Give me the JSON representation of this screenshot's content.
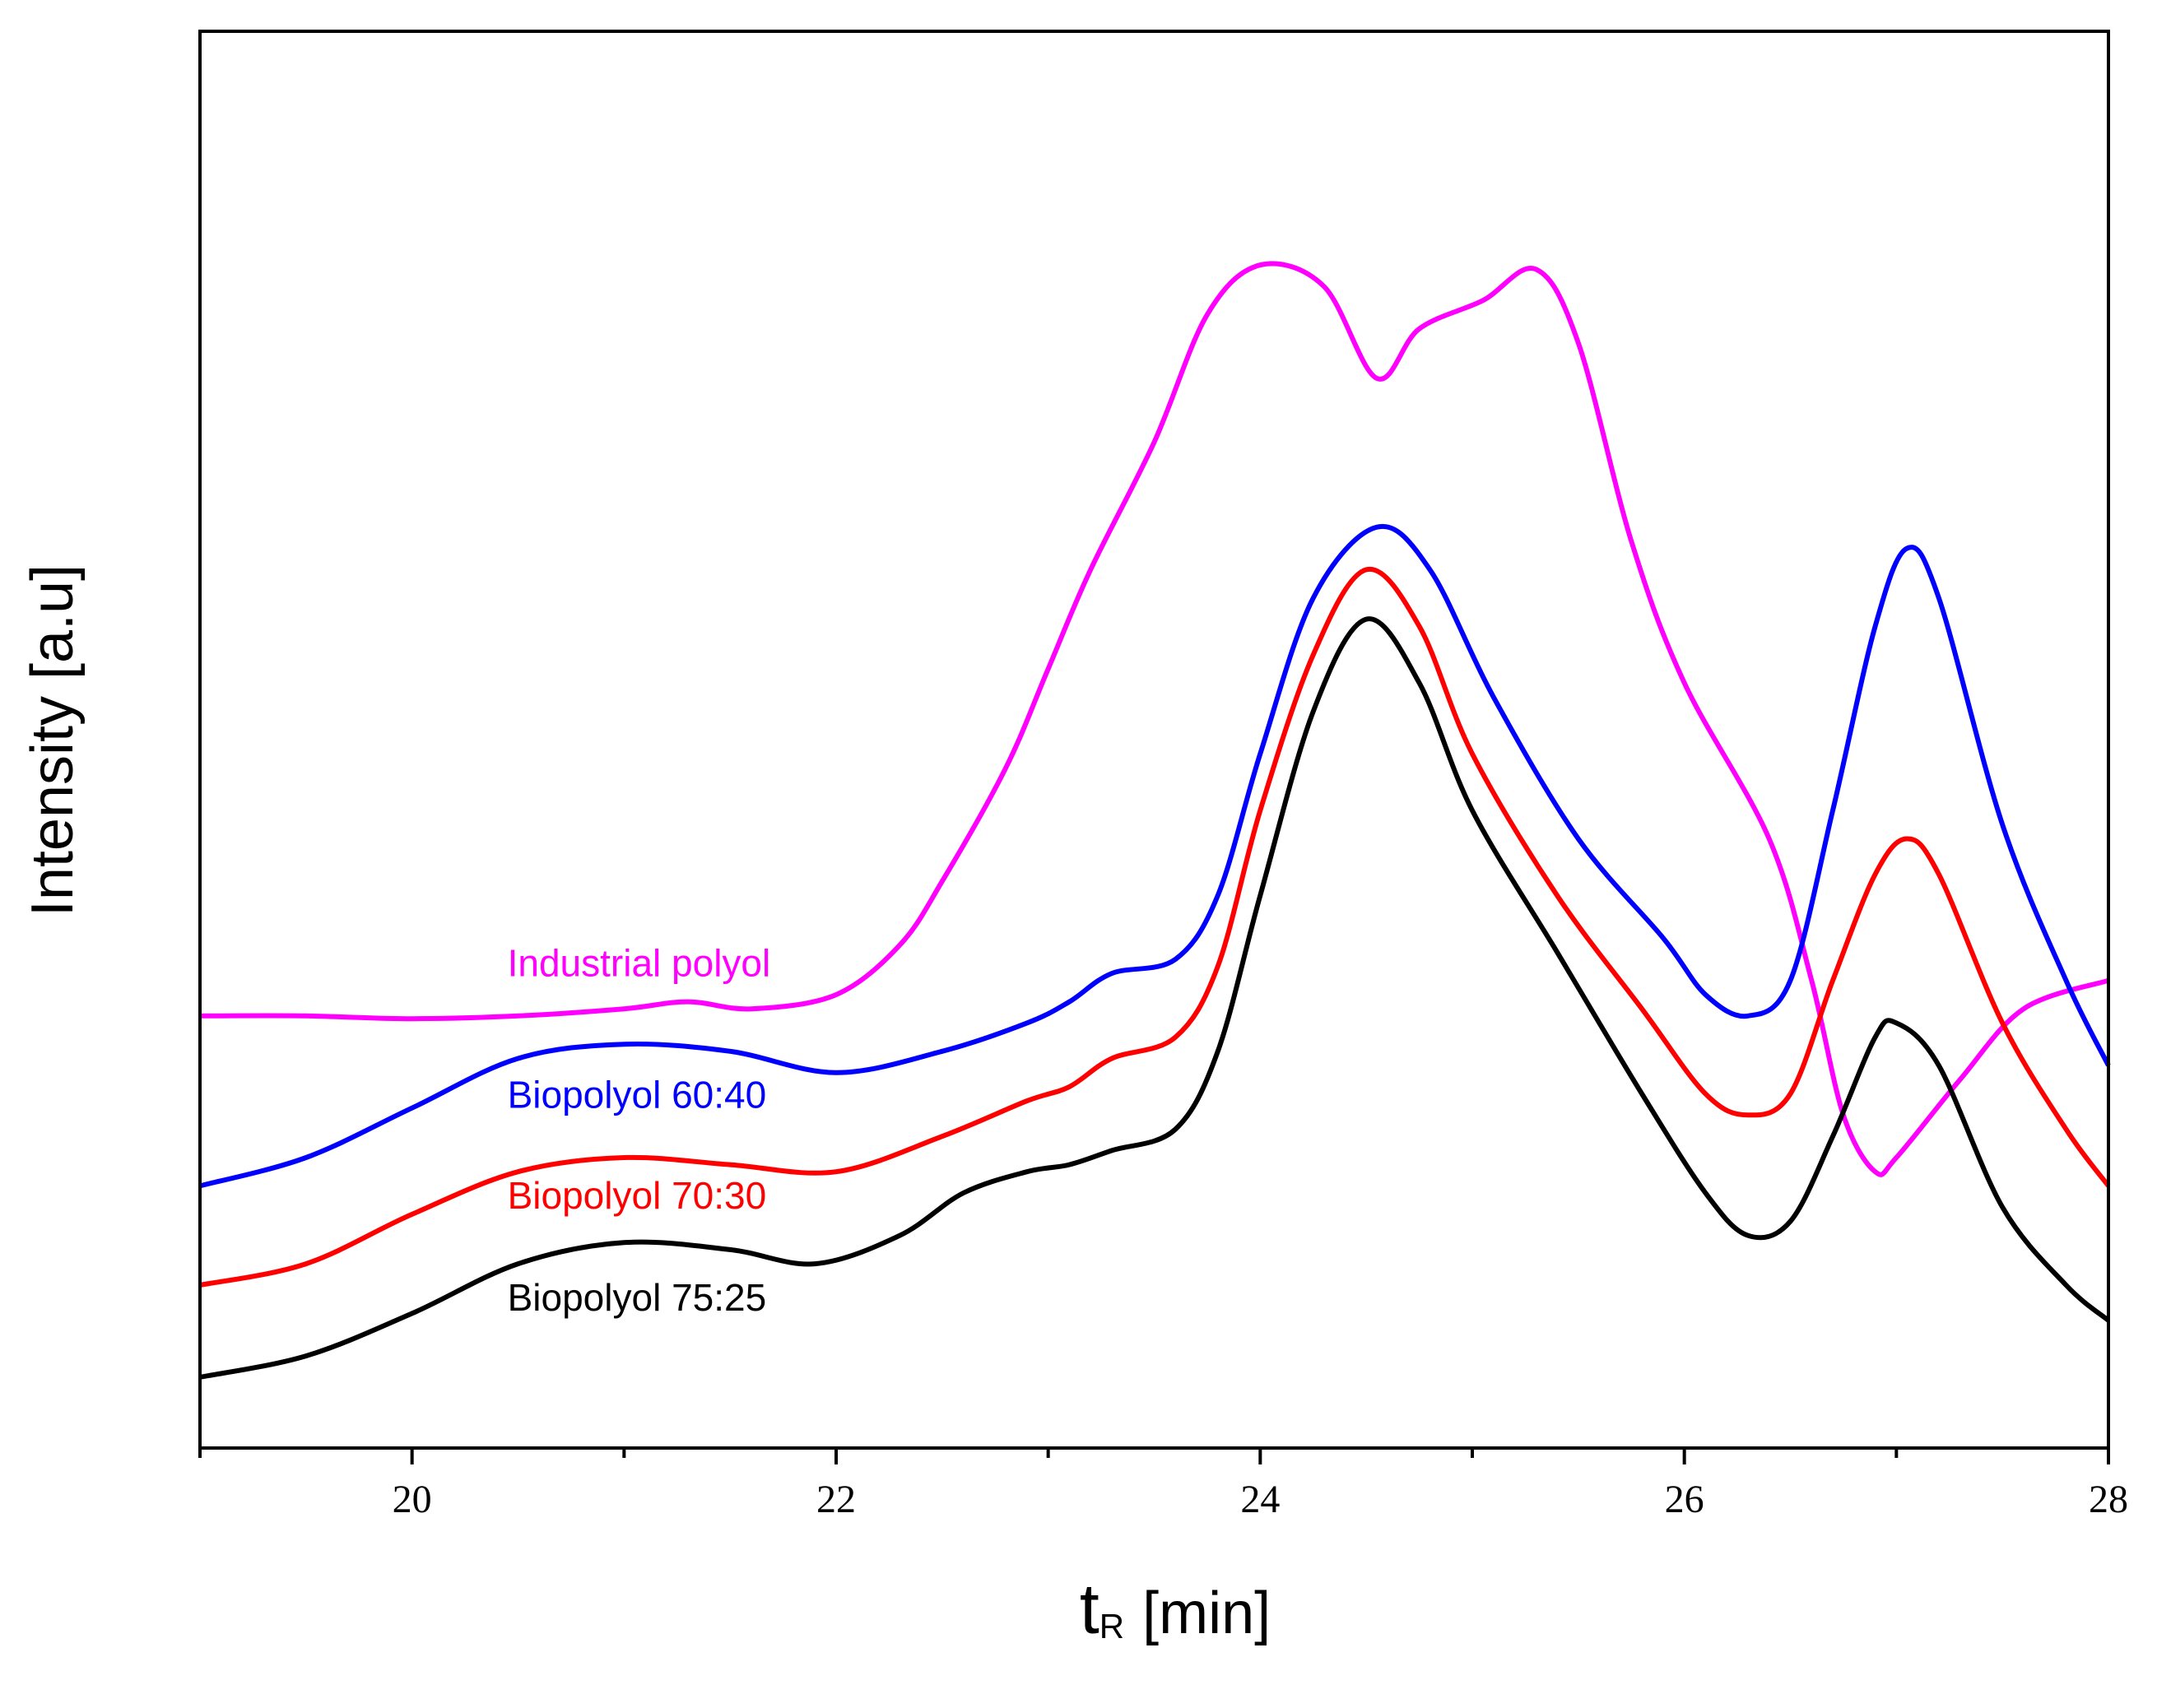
{
  "chart_data": {
    "type": "line",
    "title": "",
    "xlabel": {
      "main": "t",
      "subscript": "R",
      "unit": "[min]"
    },
    "ylabel": "Intensity [a.u]",
    "xlim": [
      19,
      28
    ],
    "ylim": [
      0,
      100
    ],
    "x_ticks": [
      20,
      22,
      24,
      26,
      28
    ],
    "y_ticks_shown": false,
    "grid": false,
    "series": [
      {
        "name": "Industrial polyol",
        "color": "#ff00ff",
        "points": [
          [
            19,
            30.5
          ],
          [
            19.5,
            30.5
          ],
          [
            20,
            30.3
          ],
          [
            20.5,
            30.5
          ],
          [
            21,
            31
          ],
          [
            21.3,
            31.5
          ],
          [
            21.6,
            31
          ],
          [
            22,
            32
          ],
          [
            22.3,
            35.5
          ],
          [
            22.5,
            40
          ],
          [
            22.8,
            48
          ],
          [
            23,
            55
          ],
          [
            23.2,
            62
          ],
          [
            23.5,
            71
          ],
          [
            23.75,
            80
          ],
          [
            24,
            83.5
          ],
          [
            24.3,
            82
          ],
          [
            24.55,
            75.5
          ],
          [
            24.75,
            79
          ],
          [
            25.05,
            81
          ],
          [
            25.3,
            83.2
          ],
          [
            25.5,
            78
          ],
          [
            25.75,
            64
          ],
          [
            26,
            54
          ],
          [
            26.4,
            43
          ],
          [
            26.6,
            33
          ],
          [
            26.75,
            23.5
          ],
          [
            26.9,
            19.5
          ],
          [
            27.0,
            20.5
          ],
          [
            27.3,
            26
          ],
          [
            27.6,
            31
          ],
          [
            28,
            33
          ]
        ]
      },
      {
        "name": "Biopolyol 60:40",
        "color": "#0000ff",
        "points": [
          [
            19,
            18.5
          ],
          [
            19.5,
            20.5
          ],
          [
            20,
            24
          ],
          [
            20.5,
            27.5
          ],
          [
            21,
            28.5
          ],
          [
            21.5,
            28
          ],
          [
            22,
            26.5
          ],
          [
            22.5,
            28
          ],
          [
            22.9,
            30
          ],
          [
            23.1,
            31.5
          ],
          [
            23.3,
            33.5
          ],
          [
            23.6,
            34.5
          ],
          [
            23.8,
            39
          ],
          [
            24,
            49
          ],
          [
            24.25,
            60
          ],
          [
            24.55,
            65
          ],
          [
            24.8,
            62
          ],
          [
            25.1,
            53
          ],
          [
            25.5,
            43
          ],
          [
            25.9,
            36
          ],
          [
            26.1,
            32
          ],
          [
            26.3,
            30.5
          ],
          [
            26.5,
            33
          ],
          [
            26.7,
            45
          ],
          [
            26.9,
            58
          ],
          [
            27.05,
            63.5
          ],
          [
            27.2,
            60
          ],
          [
            27.5,
            44
          ],
          [
            27.8,
            33
          ],
          [
            28,
            27
          ]
        ]
      },
      {
        "name": "Biopolyol 70:30",
        "color": "#ff0000",
        "points": [
          [
            19,
            11.5
          ],
          [
            19.5,
            13
          ],
          [
            20,
            16.5
          ],
          [
            20.5,
            19.5
          ],
          [
            21,
            20.5
          ],
          [
            21.5,
            20
          ],
          [
            22,
            19.5
          ],
          [
            22.5,
            22
          ],
          [
            22.9,
            24.5
          ],
          [
            23.1,
            25.5
          ],
          [
            23.3,
            27.5
          ],
          [
            23.6,
            29
          ],
          [
            23.8,
            34
          ],
          [
            24,
            45
          ],
          [
            24.25,
            56
          ],
          [
            24.5,
            62
          ],
          [
            24.75,
            58
          ],
          [
            25,
            49
          ],
          [
            25.4,
            39
          ],
          [
            25.8,
            31
          ],
          [
            26.1,
            25
          ],
          [
            26.3,
            23.5
          ],
          [
            26.5,
            25
          ],
          [
            26.7,
            33
          ],
          [
            26.9,
            40.5
          ],
          [
            27.05,
            43
          ],
          [
            27.2,
            40.5
          ],
          [
            27.5,
            30
          ],
          [
            27.8,
            22.5
          ],
          [
            28,
            18.5
          ]
        ]
      },
      {
        "name": "Biopolyol 75:25",
        "color": "#000000",
        "points": [
          [
            19,
            5
          ],
          [
            19.5,
            6.5
          ],
          [
            20,
            9.5
          ],
          [
            20.5,
            13
          ],
          [
            21,
            14.5
          ],
          [
            21.5,
            14
          ],
          [
            21.9,
            13
          ],
          [
            22.3,
            15
          ],
          [
            22.6,
            18
          ],
          [
            22.9,
            19.5
          ],
          [
            23.1,
            20
          ],
          [
            23.3,
            21
          ],
          [
            23.6,
            22.5
          ],
          [
            23.8,
            28
          ],
          [
            24,
            39
          ],
          [
            24.25,
            52
          ],
          [
            24.5,
            58.5
          ],
          [
            24.75,
            54
          ],
          [
            25,
            45
          ],
          [
            25.4,
            35
          ],
          [
            25.8,
            25
          ],
          [
            26.1,
            18
          ],
          [
            26.3,
            15
          ],
          [
            26.5,
            16
          ],
          [
            26.7,
            22
          ],
          [
            26.9,
            29
          ],
          [
            27.0,
            30
          ],
          [
            27.2,
            27
          ],
          [
            27.5,
            17
          ],
          [
            27.8,
            11.5
          ],
          [
            28,
            9
          ]
        ]
      }
    ],
    "annotations": [
      {
        "text": "Industrial polyol",
        "color": "#ff00ff",
        "x": 20.45,
        "y": 33.3
      },
      {
        "text": "Biopolyol 60:40",
        "color": "#0000ff",
        "x": 20.45,
        "y": 24.0
      },
      {
        "text": "Biopolyol 70:30",
        "color": "#ff0000",
        "x": 20.45,
        "y": 16.9
      },
      {
        "text": "Biopolyol 75:25",
        "color": "#000000",
        "x": 20.45,
        "y": 9.7
      }
    ]
  }
}
